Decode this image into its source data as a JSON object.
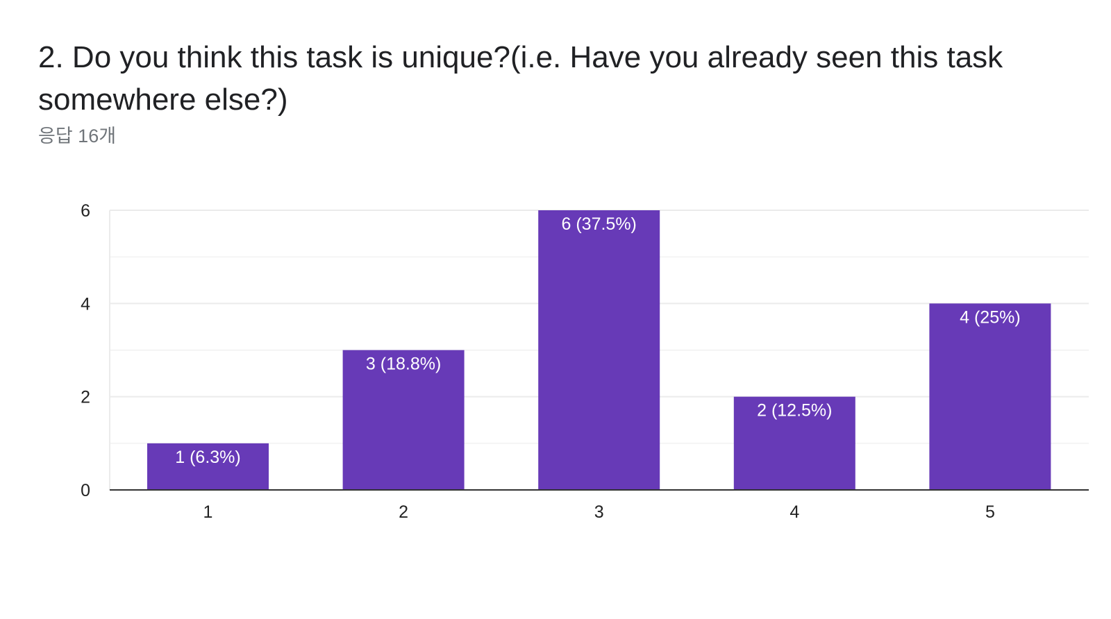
{
  "question": {
    "title": "2. Do you think this task is unique?(i.e. Have you already seen this task somewhere else?)",
    "response_count": "응답 16개"
  },
  "colors": {
    "bar": "#673ab7",
    "grid": "#ebebeb",
    "axis": "#333333"
  },
  "chart_data": {
    "type": "bar",
    "categories": [
      "1",
      "2",
      "3",
      "4",
      "5"
    ],
    "values": [
      1,
      3,
      6,
      2,
      4
    ],
    "data_labels": [
      "1 (6.3%)",
      "3 (18.8%)",
      "6 (37.5%)",
      "2 (12.5%)",
      "4 (25%)"
    ],
    "ylim": [
      0,
      6
    ],
    "yticks": [
      "0",
      "2",
      "4",
      "6"
    ],
    "grid": true
  }
}
